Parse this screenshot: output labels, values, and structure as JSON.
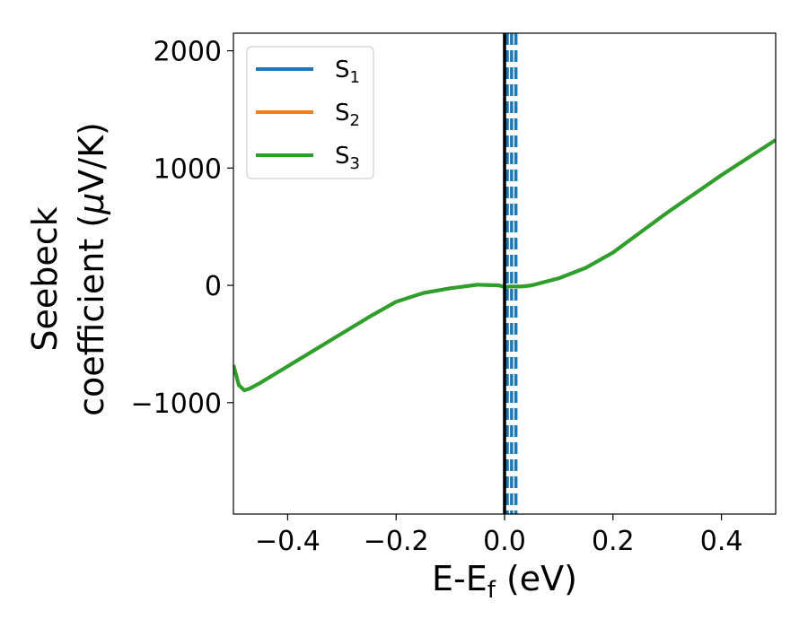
{
  "chart_data": {
    "type": "line",
    "xlabel": "E-E",
    "xlabel_sub": "f",
    "xlabel_unit": " (eV)",
    "ylabel_line1": "Seebeck",
    "ylabel_line2": "coefficient  (",
    "ylabel_mu": "μ",
    "ylabel_unit": "V/K)",
    "xlim": [
      -0.5,
      0.5
    ],
    "ylim": [
      -1950,
      2150
    ],
    "xticks": [
      -0.4,
      -0.2,
      0.0,
      0.2,
      0.4
    ],
    "xtick_labels": [
      "−0.4",
      "−0.2",
      "0.0",
      "0.2",
      "0.4"
    ],
    "yticks": [
      -1000,
      0,
      1000,
      2000
    ],
    "ytick_labels": [
      "−1000",
      "0",
      "1000",
      "2000"
    ],
    "grid": false,
    "legend_position": "upper-left",
    "fermi_line": {
      "x": 0.0,
      "color": "#000000"
    },
    "dashed_lines": {
      "x": [
        0.005,
        0.013,
        0.021
      ],
      "color": "#1f77b4"
    },
    "series": [
      {
        "name": "S",
        "sub": "1",
        "color": "#1f77b4",
        "x": [
          -0.5,
          -0.49,
          -0.48,
          -0.47,
          -0.45,
          -0.4,
          -0.35,
          -0.3,
          -0.25,
          -0.2,
          -0.15,
          -0.1,
          -0.05,
          -0.01,
          0.0,
          0.01,
          0.03,
          0.05,
          0.1,
          0.15,
          0.2,
          0.25,
          0.3,
          0.35,
          0.4,
          0.45,
          0.5
        ],
        "y": [
          -680,
          -850,
          -895,
          -880,
          -830,
          -690,
          -550,
          -410,
          -270,
          -140,
          -65,
          -25,
          5,
          0,
          -15,
          -10,
          -10,
          0,
          60,
          150,
          280,
          450,
          620,
          780,
          940,
          1090,
          1240
        ]
      },
      {
        "name": "S",
        "sub": "2",
        "color": "#ff7f0e",
        "x": [
          -0.5,
          -0.49,
          -0.48,
          -0.47,
          -0.45,
          -0.4,
          -0.35,
          -0.3,
          -0.25,
          -0.2,
          -0.15,
          -0.1,
          -0.05,
          -0.01,
          0.0,
          0.01,
          0.03,
          0.05,
          0.1,
          0.15,
          0.2,
          0.25,
          0.3,
          0.35,
          0.4,
          0.45,
          0.5
        ],
        "y": [
          -680,
          -850,
          -895,
          -880,
          -830,
          -690,
          -550,
          -410,
          -270,
          -140,
          -65,
          -25,
          5,
          0,
          -15,
          -10,
          -10,
          0,
          60,
          150,
          280,
          450,
          620,
          780,
          940,
          1090,
          1240
        ]
      },
      {
        "name": "S",
        "sub": "3",
        "color": "#2ca02c",
        "x": [
          -0.5,
          -0.49,
          -0.48,
          -0.47,
          -0.45,
          -0.4,
          -0.35,
          -0.3,
          -0.25,
          -0.2,
          -0.15,
          -0.1,
          -0.05,
          -0.01,
          0.0,
          0.01,
          0.03,
          0.05,
          0.1,
          0.15,
          0.2,
          0.25,
          0.3,
          0.35,
          0.4,
          0.45,
          0.5
        ],
        "y": [
          -680,
          -850,
          -895,
          -880,
          -830,
          -690,
          -550,
          -410,
          -270,
          -140,
          -65,
          -25,
          5,
          0,
          -15,
          -10,
          -10,
          0,
          60,
          150,
          280,
          450,
          620,
          780,
          940,
          1090,
          1240
        ]
      }
    ]
  }
}
